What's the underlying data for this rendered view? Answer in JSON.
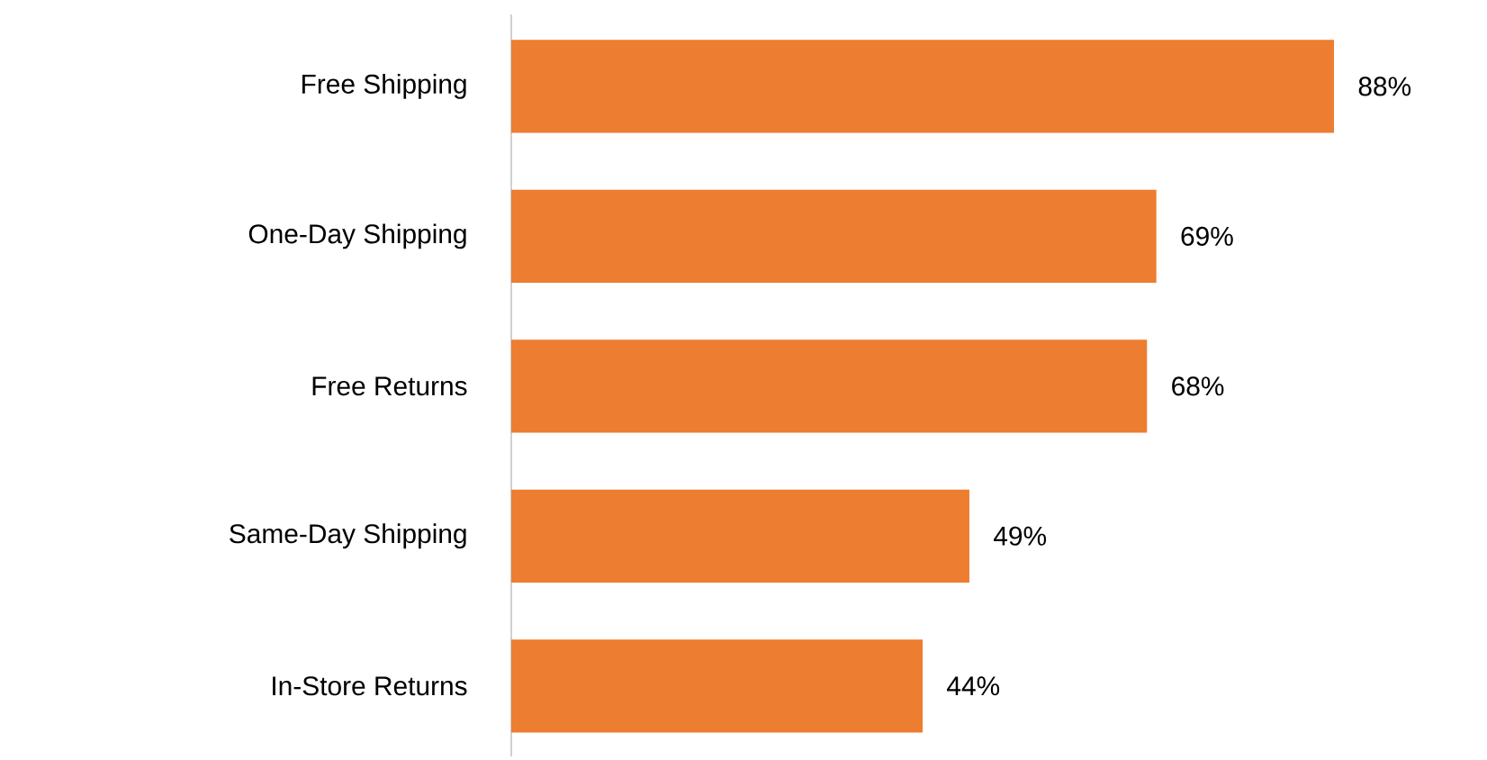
{
  "chart_data": {
    "type": "bar",
    "orientation": "horizontal",
    "categories": [
      "Free Shipping",
      "One-Day Shipping",
      "Free Returns",
      "Same-Day Shipping",
      "In-Store Returns"
    ],
    "values": [
      88,
      69,
      68,
      49,
      44
    ],
    "value_labels": [
      "88%",
      "69%",
      "68%",
      "49%",
      "44%"
    ],
    "color": "#ed7d31"
  }
}
